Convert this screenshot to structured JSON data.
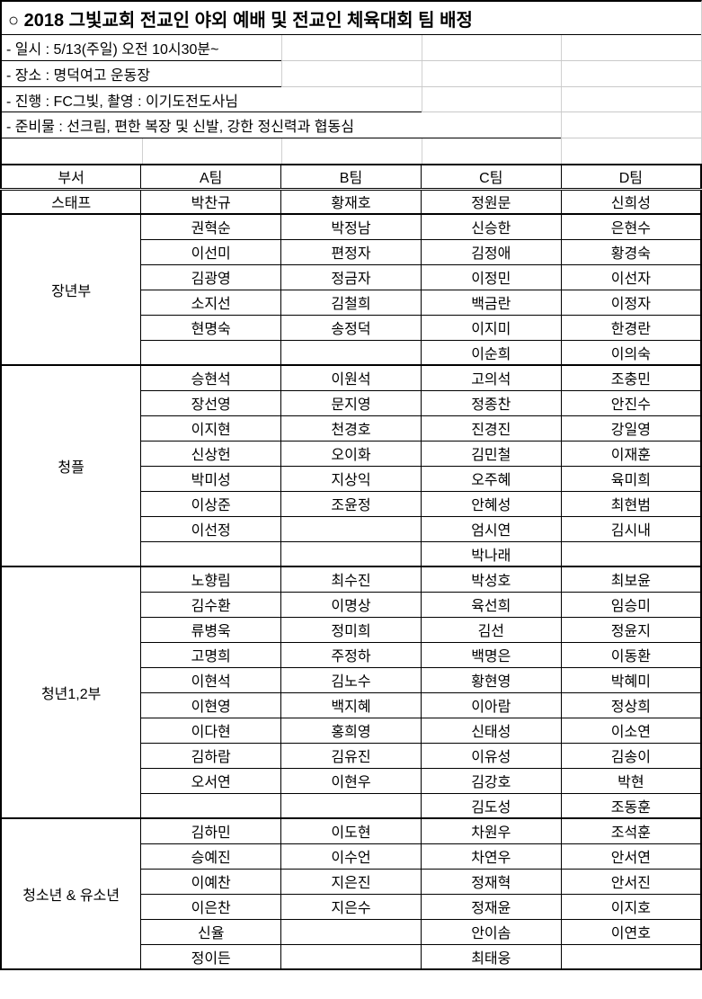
{
  "title": "○ 2018 그빛교회 전교인 야외 예배 및 전교인 체육대회 팀 배정",
  "info_lines": [
    "- 일시 : 5/13(주일) 오전 10시30분~",
    "- 장소 : 명덕여고 운동장",
    "- 진행 : FC그빛, 촬영 : 이기도전도사님",
    "- 준비물 : 선크림, 편한 복장 및 신발, 강한 정신력과 협동심"
  ],
  "table": {
    "headers": [
      "부서",
      "A팀",
      "B팀",
      "C팀",
      "D팀"
    ],
    "sections": [
      {
        "dept": "스태프",
        "rows": [
          [
            "박찬규",
            "황재호",
            "정원문",
            "신희성"
          ]
        ]
      },
      {
        "dept": "장년부",
        "rows": [
          [
            "권혁순",
            "박정남",
            "신승한",
            "은현수"
          ],
          [
            "이선미",
            "편정자",
            "김정애",
            "황경숙"
          ],
          [
            "김광영",
            "정금자",
            "이정민",
            "이선자"
          ],
          [
            "소지선",
            "김철희",
            "백금란",
            "이정자"
          ],
          [
            "현명숙",
            "송정덕",
            "이지미",
            "한경란"
          ],
          [
            "",
            "",
            "이순희",
            "이의숙"
          ]
        ]
      },
      {
        "dept": "청플",
        "rows": [
          [
            "승현석",
            "이원석",
            "고의석",
            "조충민"
          ],
          [
            "장선영",
            "문지영",
            "정종찬",
            "안진수"
          ],
          [
            "이지현",
            "천경호",
            "진경진",
            "강일영"
          ],
          [
            "신상헌",
            "오이화",
            "김민철",
            "이재훈"
          ],
          [
            "박미성",
            "지상익",
            "오주혜",
            "육미희"
          ],
          [
            "이상준",
            "조윤정",
            "안혜성",
            "최현범"
          ],
          [
            "이선정",
            "",
            "엄시연",
            "김시내"
          ],
          [
            "",
            "",
            "박나래",
            ""
          ]
        ]
      },
      {
        "dept": "청년1,2부",
        "rows": [
          [
            "노향림",
            "최수진",
            "박성호",
            "최보윤"
          ],
          [
            "김수환",
            "이명상",
            "육선희",
            "임승미"
          ],
          [
            "류병욱",
            "정미희",
            "김선",
            "정윤지"
          ],
          [
            "고명희",
            "주정하",
            "백명은",
            "이동환"
          ],
          [
            "이현석",
            "김노수",
            "황현영",
            "박혜미"
          ],
          [
            "이현영",
            "백지혜",
            "이아람",
            "정상희"
          ],
          [
            "이다현",
            "홍희영",
            "신태성",
            "이소연"
          ],
          [
            "김하람",
            "김유진",
            "이유성",
            "김송이"
          ],
          [
            "오서연",
            "이현우",
            "김강호",
            "박현"
          ],
          [
            "",
            "",
            "김도성",
            "조동훈"
          ]
        ]
      },
      {
        "dept": "청소년 & 유소년",
        "rows": [
          [
            "김하민",
            "이도현",
            "차원우",
            "조석훈"
          ],
          [
            "승예진",
            "이수언",
            "차연우",
            "안서연"
          ],
          [
            "이예찬",
            "지은진",
            "정재혁",
            "안서진"
          ],
          [
            "이은찬",
            "지은수",
            "정재윤",
            "이지호"
          ],
          [
            "신율",
            "",
            "안이솜",
            "이연호"
          ],
          [
            "정이든",
            "",
            "최태웅",
            ""
          ]
        ]
      }
    ]
  },
  "colors": {
    "border": "#000000",
    "gridline": "#d0d0d0",
    "text": "#000000",
    "background": "#ffffff"
  }
}
